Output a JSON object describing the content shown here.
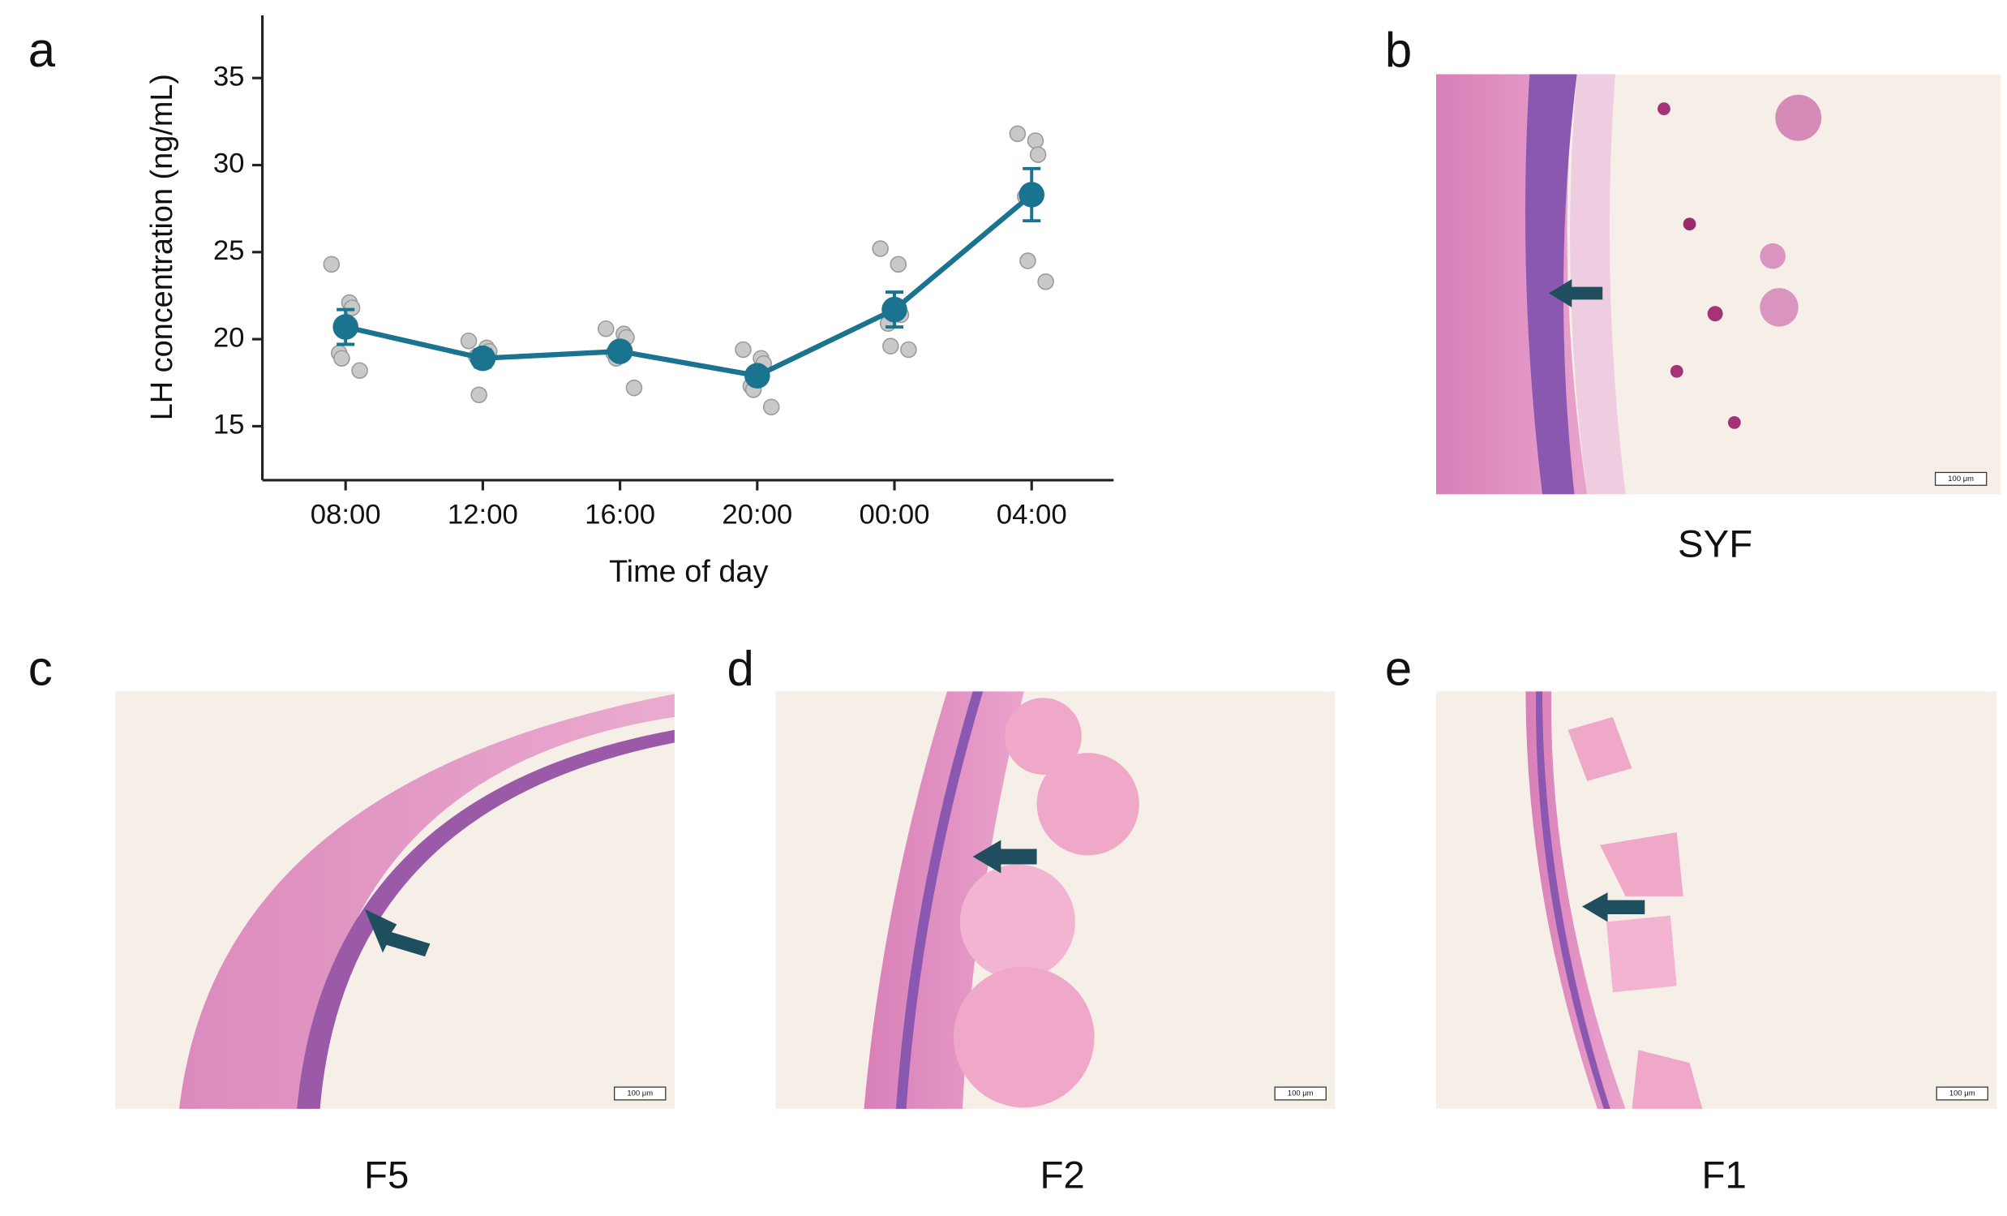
{
  "chart_data": {
    "type": "line",
    "panel_label": "a",
    "x_label": "Time of day",
    "y_label": "LH concentration (ng/mL)",
    "categories": [
      "08:00",
      "12:00",
      "16:00",
      "20:00",
      "00:00",
      "04:00"
    ],
    "values": [
      20.7,
      18.9,
      19.3,
      17.9,
      21.7,
      28.3
    ],
    "errors": [
      1.0,
      0.5,
      0.4,
      0.4,
      1.0,
      1.5
    ],
    "points": [
      [
        24.3,
        22.1,
        21.8,
        19.2,
        18.9,
        18.2
      ],
      [
        19.9,
        19.5,
        19.3,
        19.0,
        16.8
      ],
      [
        20.6,
        20.3,
        20.1,
        19.2,
        18.9,
        17.2
      ],
      [
        19.4,
        18.9,
        18.6,
        17.3,
        17.1,
        16.1
      ],
      [
        25.2,
        24.3,
        21.4,
        20.9,
        19.6,
        19.4
      ],
      [
        31.8,
        31.4,
        30.6,
        28.2,
        24.5,
        23.3
      ]
    ],
    "color": "#1a7490",
    "point_color": "#c9c9c9",
    "ylim": [
      11.9,
      38.6
    ],
    "yticks": [
      15,
      20,
      25,
      30,
      35
    ],
    "grid": false
  },
  "panels": [
    {
      "letter": "b",
      "caption": "SYF",
      "scale_bar": "100 μm"
    },
    {
      "letter": "c",
      "caption": "F5",
      "scale_bar": "100 μm"
    },
    {
      "letter": "d",
      "caption": "F2",
      "scale_bar": "100 μm"
    },
    {
      "letter": "e",
      "caption": "F1",
      "scale_bar": "100 μm"
    }
  ]
}
